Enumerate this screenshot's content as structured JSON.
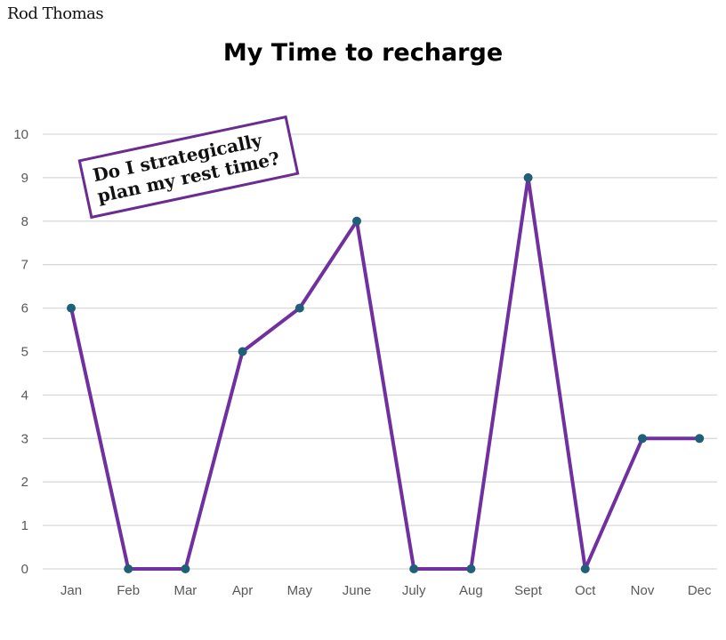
{
  "brand": {
    "name": "Rod Thomas"
  },
  "chart_data": {
    "type": "line",
    "title": "My Time to recharge",
    "xlabel": "",
    "ylabel": "",
    "categories": [
      "Jan",
      "Feb",
      "Mar",
      "Apr",
      "May",
      "June",
      "July",
      "Aug",
      "Sept",
      "Oct",
      "Nov",
      "Dec"
    ],
    "series": [
      {
        "values": [
          6,
          0,
          0,
          5,
          6,
          8,
          0,
          0,
          9,
          0,
          3,
          3
        ]
      }
    ],
    "ylim": [
      0,
      10
    ],
    "yticks": [
      0,
      1,
      2,
      3,
      4,
      5,
      6,
      7,
      8,
      9,
      10
    ],
    "grid": true,
    "legend": "none",
    "colors": {
      "line": "#7030a0",
      "marker": "#1f5f7a",
      "grid": "#d9d9d9",
      "tick_text": "#595959"
    },
    "annotations": [
      {
        "lines": [
          "Do I strategically",
          "plan my rest time?"
        ],
        "border_color": "#6a2c91"
      }
    ]
  }
}
